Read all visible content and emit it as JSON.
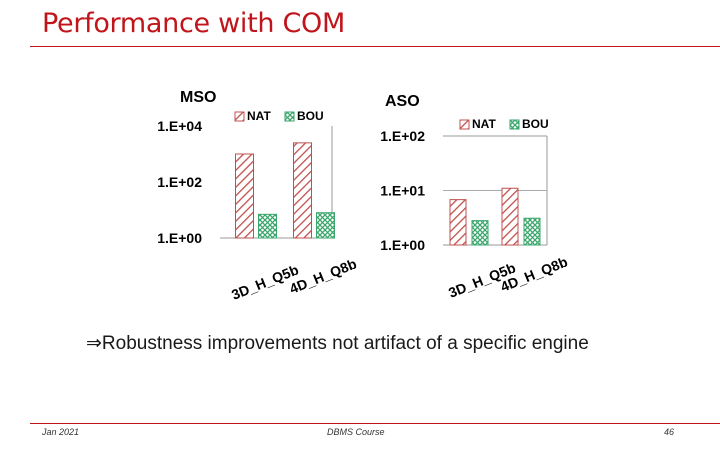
{
  "slide": {
    "title": "Performance with COM",
    "bullet_symbol": "⇒",
    "bullet_text": "Robustness improvements not artifact of a specific engine"
  },
  "footer": {
    "date": "Jan 2021",
    "course": "DBMS Course",
    "page": "46"
  },
  "colors": {
    "accent": "#c0151a",
    "nat": "#c0504d",
    "bou": "#3aa66b"
  },
  "chart_data": [
    {
      "type": "bar",
      "scale": "log",
      "title": "MSO",
      "categories": [
        "3D_H_Q5b",
        "4D_H_Q8b"
      ],
      "series": [
        {
          "name": "NAT",
          "values": [
            1000,
            2500
          ],
          "pattern": "hatch-diagonal"
        },
        {
          "name": "BOU",
          "values": [
            7,
            8
          ],
          "pattern": "hatch-cross"
        }
      ],
      "yticks": [
        "1.E+00",
        "1.E+02",
        "1.E+04"
      ],
      "ylim": [
        1,
        10000
      ],
      "grid": false,
      "legend": "top-right"
    },
    {
      "type": "bar",
      "scale": "log",
      "title": "ASO",
      "categories": [
        "3D_H_Q5b",
        "4D_H_Q8b"
      ],
      "series": [
        {
          "name": "NAT",
          "values": [
            6.8,
            11
          ],
          "pattern": "hatch-diagonal"
        },
        {
          "name": "BOU",
          "values": [
            2.8,
            3.1
          ],
          "pattern": "hatch-cross"
        }
      ],
      "yticks": [
        "1.E+00",
        "1.E+01",
        "1.E+02"
      ],
      "ylim": [
        1,
        100
      ],
      "grid": true,
      "legend": "top-right"
    }
  ]
}
